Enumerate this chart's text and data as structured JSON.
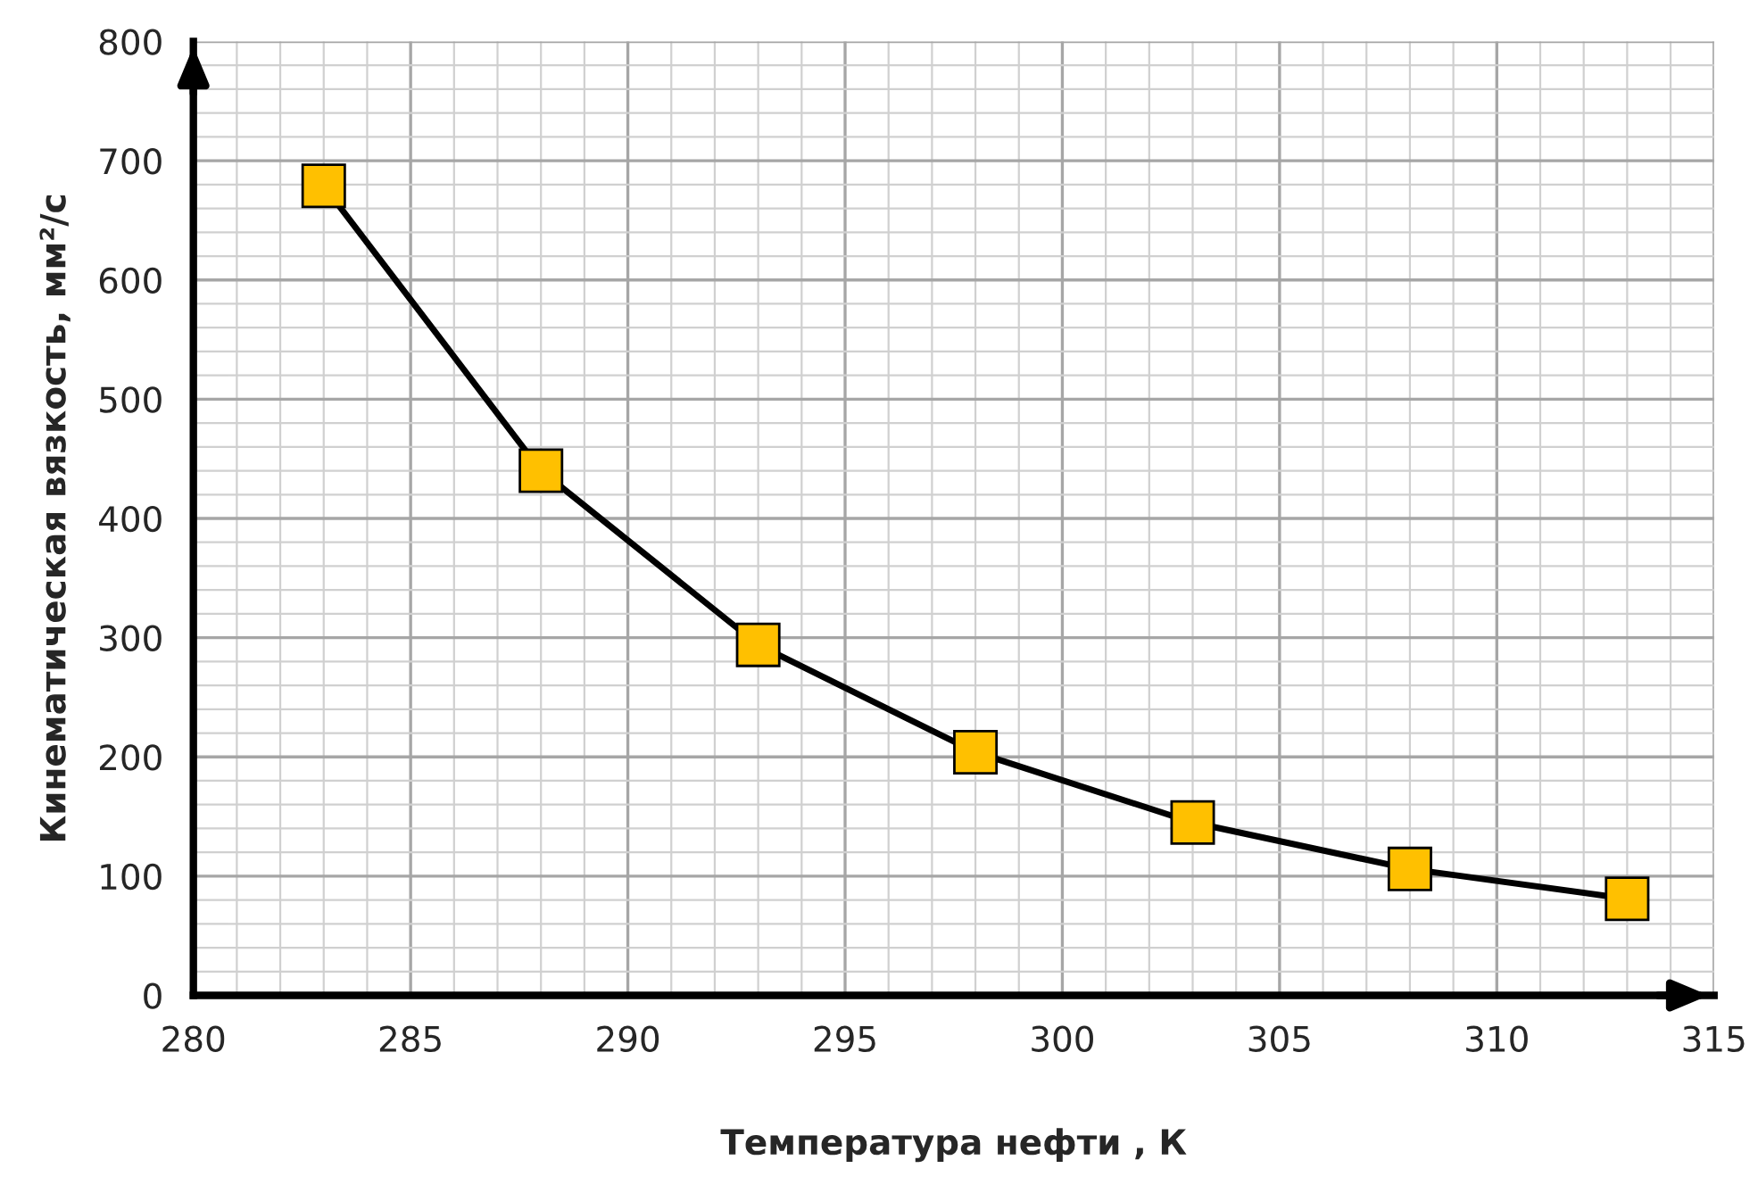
{
  "chart_data": {
    "type": "line",
    "xlabel": "Температура нефти , К",
    "ylabel": "Кинематическая вязкость, мм²/с",
    "x": [
      283,
      288,
      293,
      298,
      303,
      308,
      313
    ],
    "series": [
      {
        "color": "#ffc000",
        "values": [
          679,
          440,
          294,
          204,
          145,
          106,
          81
        ]
      }
    ],
    "xlim": [
      280,
      315
    ],
    "xticks": [
      280,
      285,
      290,
      295,
      300,
      305,
      310,
      315
    ],
    "ylim": [
      0,
      800
    ],
    "yticks": [
      0,
      100,
      200,
      300,
      400,
      500,
      600,
      700,
      800
    ],
    "grid": true,
    "marker": "square",
    "line_style": "solid",
    "legend": false
  }
}
